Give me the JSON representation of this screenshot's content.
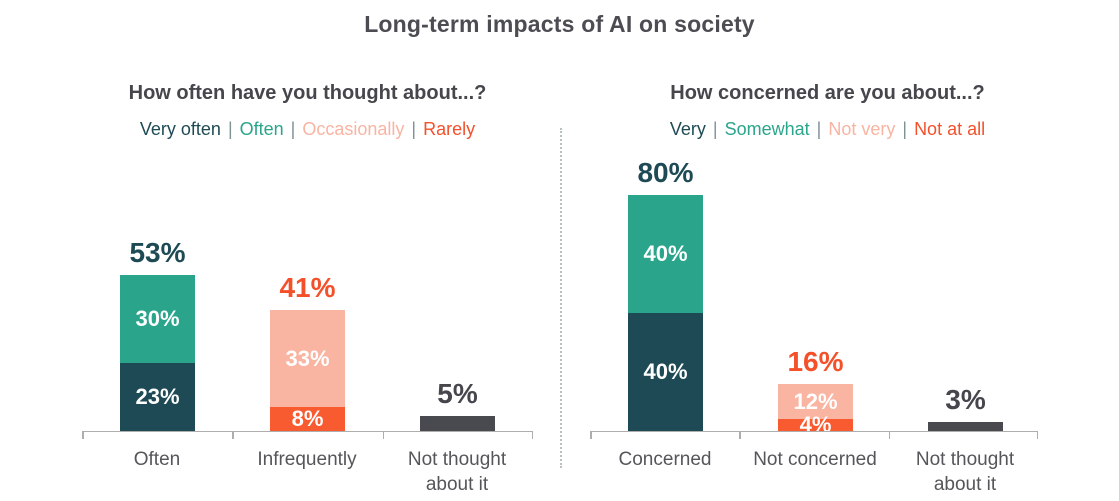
{
  "title": "Long-term impacts of AI on society",
  "ui": {
    "separator": "|"
  },
  "palette": {
    "dark_teal": "#1d4a54",
    "teal": "#2aa58c",
    "salmon": "#f9b4a2",
    "orange": "#f95b30",
    "orange_text": "#f4502a",
    "gray_bar": "#494a50",
    "gray_text": "#46474d",
    "axis": "#aeaeae"
  },
  "chart_data": [
    {
      "type": "bar",
      "stacked": true,
      "title": "How often have you thought about...?",
      "unit": "%",
      "ylim": [
        0,
        100
      ],
      "grid": false,
      "legend_position": "top",
      "legend": [
        {
          "label": "Very often",
          "color": "#1d4a54"
        },
        {
          "label": "Often",
          "color": "#2aa58c"
        },
        {
          "label": "Occasionally",
          "color": "#f9b4a2"
        },
        {
          "label": "Rarely",
          "color": "#f4502a"
        }
      ],
      "categories": [
        "Often",
        "Infrequently",
        "Not thought about it"
      ],
      "bars": [
        {
          "category": "Often",
          "total": 53,
          "total_label": "53%",
          "total_color": "#1d4a54",
          "segments": [
            {
              "name": "Often",
              "value": 30,
              "label": "30%",
              "color": "#2aa58c"
            },
            {
              "name": "Very often",
              "value": 23,
              "label": "23%",
              "color": "#1d4a54"
            }
          ]
        },
        {
          "category": "Infrequently",
          "total": 41,
          "total_label": "41%",
          "total_color": "#f4502a",
          "segments": [
            {
              "name": "Occasionally",
              "value": 33,
              "label": "33%",
              "color": "#f9b4a2"
            },
            {
              "name": "Rarely",
              "value": 8,
              "label": "8%",
              "color": "#f95b30"
            }
          ]
        },
        {
          "category": "Not thought about it",
          "total": 5,
          "total_label": "5%",
          "total_color": "#46474d",
          "segments": [
            {
              "name": "Not thought about it",
              "value": 5,
              "label": "",
              "color": "#494a50"
            }
          ]
        }
      ]
    },
    {
      "type": "bar",
      "stacked": true,
      "title": "How concerned are you about...?",
      "unit": "%",
      "ylim": [
        0,
        100
      ],
      "grid": false,
      "legend_position": "top",
      "legend": [
        {
          "label": "Very",
          "color": "#1d4a54"
        },
        {
          "label": "Somewhat",
          "color": "#2aa58c"
        },
        {
          "label": "Not very",
          "color": "#f9b4a2"
        },
        {
          "label": "Not at all",
          "color": "#f4502a"
        }
      ],
      "categories": [
        "Concerned",
        "Not concerned",
        "Not thought about it"
      ],
      "bars": [
        {
          "category": "Concerned",
          "total": 80,
          "total_label": "80%",
          "total_color": "#1d4a54",
          "segments": [
            {
              "name": "Somewhat",
              "value": 40,
              "label": "40%",
              "color": "#2aa58c"
            },
            {
              "name": "Very",
              "value": 40,
              "label": "40%",
              "color": "#1d4a54"
            }
          ]
        },
        {
          "category": "Not concerned",
          "total": 16,
          "total_label": "16%",
          "total_color": "#f4502a",
          "segments": [
            {
              "name": "Not very",
              "value": 12,
              "label": "12%",
              "color": "#f9b4a2"
            },
            {
              "name": "Not at all",
              "value": 4,
              "label": "4%",
              "color": "#f95b30"
            }
          ]
        },
        {
          "category": "Not thought about it",
          "total": 3,
          "total_label": "3%",
          "total_color": "#46474d",
          "segments": [
            {
              "name": "Not thought about it",
              "value": 3,
              "label": "",
              "color": "#494a50"
            }
          ]
        }
      ]
    }
  ]
}
